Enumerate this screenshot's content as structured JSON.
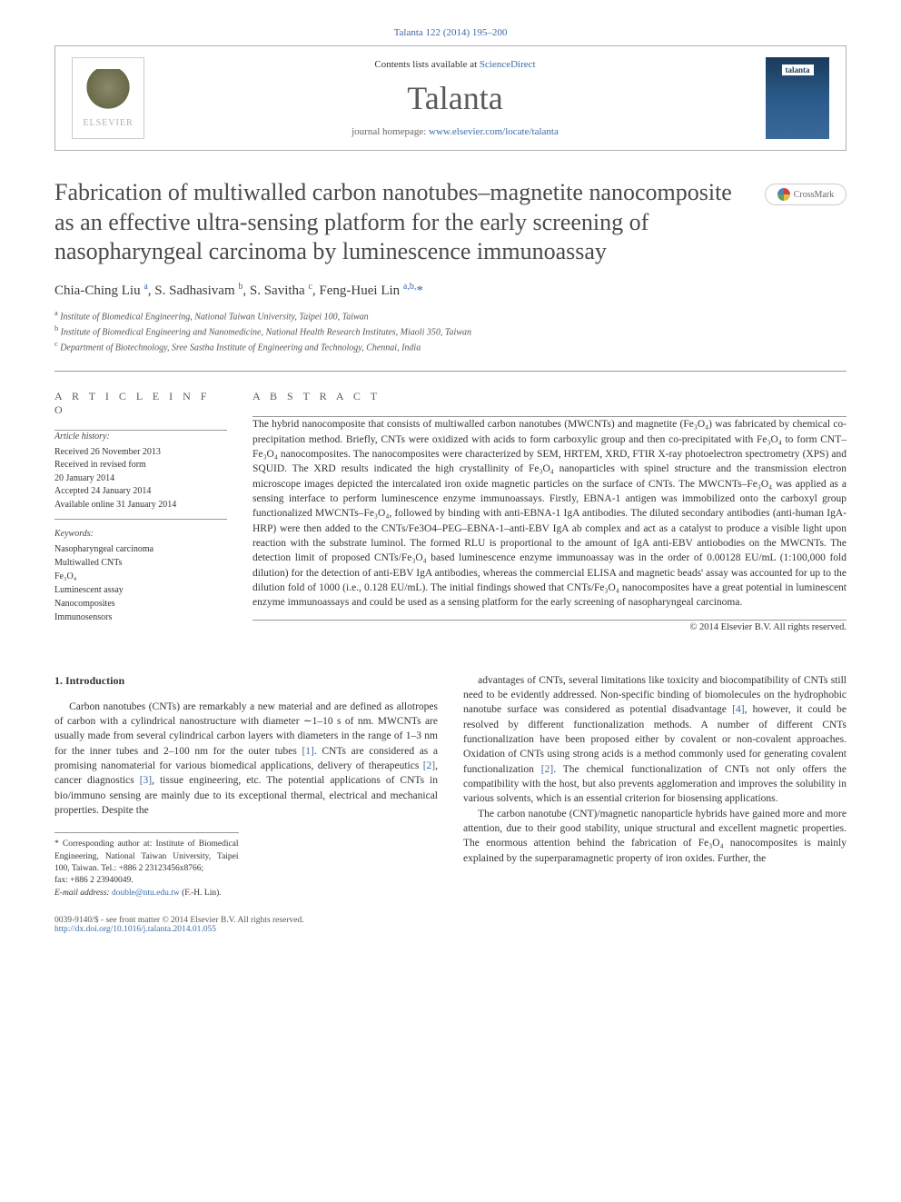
{
  "journal_ref": "Talanta 122 (2014) 195–200",
  "header": {
    "contents": "Contents lists available at ",
    "contents_link": "ScienceDirect",
    "journal_name": "Talanta",
    "homepage_label": "journal homepage: ",
    "homepage_url": "www.elsevier.com/locate/talanta",
    "elsevier_label": "ELSEVIER",
    "cover_label": "talanta"
  },
  "crossmark": "CrossMark",
  "title": "Fabrication of multiwalled carbon nanotubes–magnetite nanocomposite as an effective ultra-sensing platform for the early screening of nasopharyngeal carcinoma by luminescence immunoassay",
  "authors_html": "Chia-Ching Liu <sup>a</sup>, S. Sadhasivam <sup>b</sup>, S. Savitha <sup>c</sup>, Feng-Huei Lin <sup>a,b,</sup><span class='star'>*</span>",
  "affiliations": [
    "a Institute of Biomedical Engineering, National Taiwan University, Taipei 100, Taiwan",
    "b Institute of Biomedical Engineering and Nanomedicine, National Health Research Institutes, Miaoli 350, Taiwan",
    "c Department of Biotechnology, Sree Sastha Institute of Engineering and Technology, Chennai, India"
  ],
  "info": {
    "heading": "A R T I C L E  I N F O",
    "history_label": "Article history:",
    "history": [
      "Received 26 November 2013",
      "Received in revised form",
      "20 January 2014",
      "Accepted 24 January 2014",
      "Available online 31 January 2014"
    ],
    "keywords_label": "Keywords:",
    "keywords": [
      "Nasopharyngeal carcinoma",
      "Multiwalled CNTs",
      "Fe₃O₄",
      "Luminescent assay",
      "Nanocomposites",
      "Immunosensors"
    ]
  },
  "abstract": {
    "heading": "A B S T R A C T",
    "body": "The hybrid nanocomposite that consists of multiwalled carbon nanotubes (MWCNTs) and magnetite (Fe₃O₄) was fabricated by chemical co-precipitation method. Briefly, CNTs were oxidized with acids to form carboxylic group and then co-precipitated with Fe₃O₄ to form CNT–Fe₃O₄ nanocomposites. The nanocomposites were characterized by SEM, HRTEM, XRD, FTIR X-ray photoelectron spectrometry (XPS) and SQUID. The XRD results indicated the high crystallinity of Fe₃O₄ nanoparticles with spinel structure and the transmission electron microscope images depicted the intercalated iron oxide magnetic particles on the surface of CNTs. The MWCNTs–Fe₃O₄ was applied as a sensing interface to perform luminescence enzyme immunoassays. Firstly, EBNA-1 antigen was immobilized onto the carboxyl group functionalized MWCNTs–Fe₃O₄, followed by binding with anti-EBNA-1 IgA antibodies. The diluted secondary antibodies (anti-human IgA-HRP) were then added to the CNTs/Fe3O4–PEG–EBNA-1–anti-EBV IgA ab complex and act as a catalyst to produce a visible light upon reaction with the substrate luminol. The formed RLU is proportional to the amount of IgA anti-EBV antiobodies on the MWCNTs. The detection limit of proposed CNTs/Fe₃O₄ based luminescence enzyme immunoassay was in the order of 0.00128 EU/mL (1:100,000 fold dilution) for the detection of anti-EBV IgA antibodies, whereas the commercial ELISA and magnetic beads' assay was accounted for up to the dilution fold of 1000 (i.e., 0.128 EU/mL). The initial findings showed that CNTs/Fe₃O₄ nanocomposites have a great potential in luminescent enzyme immunoassays and could be used as a sensing platform for the early screening of nasopharyngeal carcinoma.",
    "copyright": "© 2014 Elsevier B.V. All rights reserved."
  },
  "body": {
    "section_heading": "1.  Introduction",
    "col1_p1": "Carbon nanotubes (CNTs) are remarkably a new material and are defined as allotropes of carbon with a cylindrical nanostructure with diameter ∼1–10 s of nm. MWCNTs are usually made from several cylindrical carbon layers with diameters in the range of 1–3 nm for the inner tubes and 2–100 nm for the outer tubes [1]. CNTs are considered as a promising nanomaterial for various biomedical applications, delivery of therapeutics [2], cancer diagnostics [3], tissue engineering, etc. The potential applications of CNTs in bio/immuno sensing are mainly due to its exceptional thermal, electrical and mechanical properties. Despite the",
    "col2_p1": "advantages of CNTs, several limitations like toxicity and biocompatibility of CNTs still need to be evidently addressed. Non-specific binding of biomolecules on the hydrophobic nanotube surface was considered as potential disadvantage [4], however, it could be resolved by different functionalization methods. A number of different CNTs functionalization have been proposed either by covalent or non-covalent approaches. Oxidation of CNTs using strong acids is a method commonly used for generating covalent functionalization [2]. The chemical functionalization of CNTs not only offers the compatibility with the host, but also prevents agglomeration and improves the solubility in various solvents, which is an essential criterion for biosensing applications.",
    "col2_p2": "The carbon nanotube (CNT)/magnetic nanoparticle hybrids have gained more and more attention, due to their good stability, unique structural and excellent magnetic properties. The enormous attention behind the fabrication of Fe₃O₄ nanocomposites is mainly explained by the superparamagnetic property of iron oxides. Further, the"
  },
  "footnotes": {
    "corr": "* Corresponding author at: Institute of Biomedical Engineering, National Taiwan University, Taipei 100, Taiwan. Tel.: +886 2 23123456x8766;",
    "fax": "fax: +886 2 23940049.",
    "email_label": "E-mail address: ",
    "email": "double@ntu.edu.tw",
    "email_tail": " (F.-H. Lin)."
  },
  "footer": {
    "left_line1": "0039-9140/$ - see front matter © 2014 Elsevier B.V. All rights reserved.",
    "left_line2": "http://dx.doi.org/10.1016/j.talanta.2014.01.055"
  },
  "colors": {
    "link": "#3a6aa8",
    "text": "#333333",
    "heading_gray": "#5a5a5a"
  }
}
